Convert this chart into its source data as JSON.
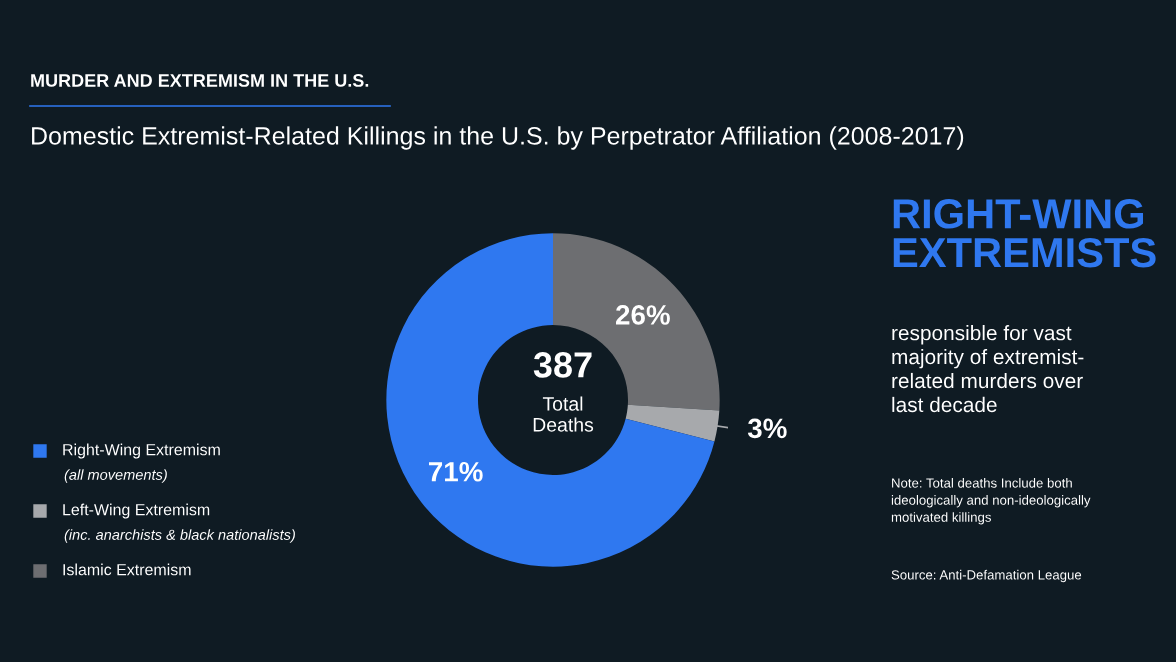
{
  "chart_data": {
    "type": "donut",
    "title": "MURDER AND EXTREMISM IN THE U.S.",
    "subtitle": "Domestic Extremist-Related Killings in the U.S. by Perpetrator Affiliation (2008-2017)",
    "categories": [
      "Islamic Extremism",
      "Left-Wing Extremism\n(inc. anarchists & black nationalists)",
      "Right-Wing Extremism\n(all movements)"
    ],
    "values": [
      26,
      3,
      71
    ],
    "value_labels": [
      "26%",
      "3%",
      "71%"
    ],
    "colors": [
      "#6d6e71",
      "#a7a9ac",
      "#2f78f0"
    ],
    "legend": "left",
    "annotations": [
      "387",
      "Total\nDeaths",
      "RIGHT-WING\nEXTREMISTS",
      "responsible for vast\nmajority of extremist-\nrelated murders over\nlast decade",
      "Note: Total deaths Include both\nideologically and non-ideologically\nmotivated killings",
      "Source: Anti-Defamation League"
    ]
  }
}
